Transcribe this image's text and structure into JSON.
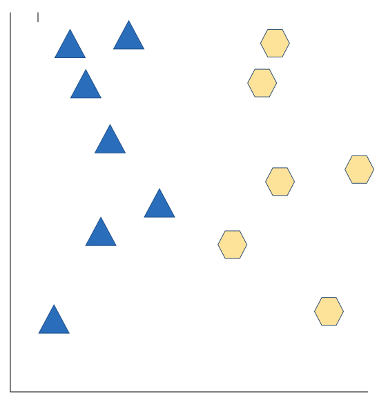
{
  "chart_data": {
    "type": "scatter",
    "xlabel": "",
    "ylabel": "",
    "xlim": [
      0,
      100
    ],
    "ylim": [
      0,
      100
    ],
    "grid": false,
    "legend": "none",
    "colors": {
      "triangle_fill": "#2a6ebb",
      "triangle_stroke": "#1f4f8a",
      "hexagon_fill": "#fde39a",
      "hexagon_stroke": "#2f4f70",
      "axis": "#000000"
    },
    "series": [
      {
        "marker": "triangle",
        "points": [
          {
            "x": 16.7,
            "y": 91.8
          },
          {
            "x": 33.1,
            "y": 94.1
          },
          {
            "x": 21.1,
            "y": 81.2
          },
          {
            "x": 27.9,
            "y": 66.7
          },
          {
            "x": 41.7,
            "y": 49.8
          },
          {
            "x": 25.3,
            "y": 42.3
          },
          {
            "x": 12.2,
            "y": 19.2
          }
        ]
      },
      {
        "marker": "hexagon",
        "points": [
          {
            "x": 74.0,
            "y": 91.9
          },
          {
            "x": 70.4,
            "y": 81.4
          },
          {
            "x": 75.4,
            "y": 55.4
          },
          {
            "x": 97.6,
            "y": 58.6
          },
          {
            "x": 62.1,
            "y": 38.8
          },
          {
            "x": 89.1,
            "y": 21.2
          }
        ]
      }
    ]
  }
}
